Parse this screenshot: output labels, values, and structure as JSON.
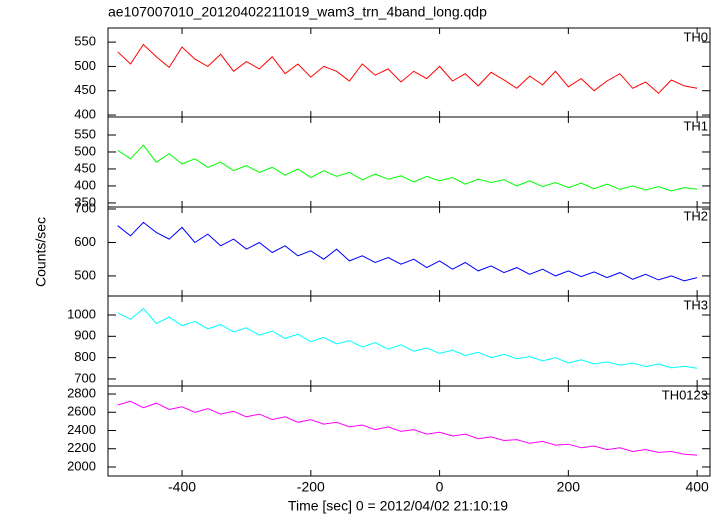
{
  "title": "ae107007010_20120402211019_wam3_trn_4band_long.qdp",
  "y_label": "Counts/sec",
  "x_axis": {
    "label": "Time [sec] 0 = 2012/04/02 21:10:19",
    "xlim": [
      -515,
      420
    ],
    "xticks": [
      -400,
      -200,
      0,
      200,
      400
    ],
    "x": [
      -500,
      -480,
      -460,
      -440,
      -420,
      -400,
      -380,
      -360,
      -340,
      -320,
      -300,
      -280,
      -260,
      -240,
      -220,
      -200,
      -180,
      -160,
      -140,
      -120,
      -100,
      -80,
      -60,
      -40,
      -20,
      0,
      20,
      40,
      60,
      80,
      100,
      120,
      140,
      160,
      180,
      200,
      220,
      240,
      260,
      280,
      300,
      320,
      340,
      360,
      380,
      400
    ]
  },
  "chart_data": [
    {
      "type": "line",
      "ylim": [
        396,
        579
      ],
      "yticks": [
        400,
        450,
        500,
        550
      ],
      "series": [
        {
          "name": "TH0",
          "color": "#ff0000",
          "values": [
            530,
            505,
            545,
            520,
            498,
            540,
            515,
            500,
            525,
            490,
            510,
            495,
            520,
            485,
            505,
            478,
            500,
            490,
            470,
            505,
            482,
            495,
            468,
            490,
            475,
            500,
            470,
            485,
            460,
            488,
            472,
            455,
            480,
            462,
            490,
            458,
            475,
            450,
            470,
            485,
            455,
            468,
            445,
            472,
            460,
            455
          ]
        }
      ]
    },
    {
      "type": "line",
      "ylim": [
        338,
        603
      ],
      "yticks": [
        350,
        400,
        450,
        500,
        550
      ],
      "series": [
        {
          "name": "TH1",
          "color": "#00ff00",
          "values": [
            505,
            480,
            520,
            470,
            495,
            465,
            480,
            455,
            470,
            445,
            460,
            440,
            455,
            432,
            450,
            425,
            445,
            428,
            440,
            418,
            435,
            420,
            430,
            412,
            428,
            415,
            425,
            405,
            420,
            410,
            418,
            400,
            415,
            398,
            410,
            395,
            408,
            392,
            405,
            390,
            400,
            388,
            398,
            385,
            395,
            390
          ]
        }
      ]
    },
    {
      "type": "line",
      "ylim": [
        440,
        706
      ],
      "yticks": [
        500,
        600,
        700
      ],
      "series": [
        {
          "name": "TH2",
          "color": "#0000ff",
          "values": [
            650,
            620,
            660,
            630,
            610,
            645,
            600,
            625,
            590,
            610,
            580,
            600,
            570,
            590,
            560,
            575,
            550,
            580,
            545,
            560,
            540,
            555,
            535,
            550,
            525,
            545,
            520,
            540,
            515,
            530,
            510,
            525,
            505,
            520,
            500,
            515,
            498,
            512,
            495,
            510,
            490,
            505,
            488,
            500,
            485,
            495
          ]
        }
      ]
    },
    {
      "type": "line",
      "ylim": [
        667,
        1089
      ],
      "yticks": [
        700,
        800,
        900,
        1000
      ],
      "series": [
        {
          "name": "TH3",
          "color": "#00ffff",
          "values": [
            1010,
            980,
            1030,
            960,
            990,
            950,
            970,
            935,
            955,
            920,
            940,
            905,
            925,
            890,
            910,
            875,
            895,
            865,
            880,
            850,
            870,
            840,
            860,
            830,
            845,
            820,
            835,
            810,
            825,
            800,
            815,
            795,
            805,
            785,
            800,
            775,
            790,
            770,
            780,
            765,
            775,
            758,
            770,
            752,
            760,
            750
          ]
        }
      ]
    },
    {
      "type": "line",
      "ylim": [
        1901,
        2888
      ],
      "yticks": [
        2000,
        2200,
        2400,
        2600,
        2800
      ],
      "series": [
        {
          "name": "TH0123",
          "color": "#ff00ff",
          "values": [
            2680,
            2720,
            2650,
            2700,
            2630,
            2660,
            2600,
            2640,
            2580,
            2610,
            2550,
            2580,
            2520,
            2550,
            2490,
            2520,
            2470,
            2490,
            2440,
            2460,
            2410,
            2440,
            2390,
            2410,
            2360,
            2380,
            2340,
            2360,
            2310,
            2330,
            2290,
            2300,
            2260,
            2280,
            2240,
            2250,
            2210,
            2230,
            2190,
            2210,
            2170,
            2190,
            2160,
            2170,
            2140,
            2130
          ]
        }
      ]
    }
  ]
}
